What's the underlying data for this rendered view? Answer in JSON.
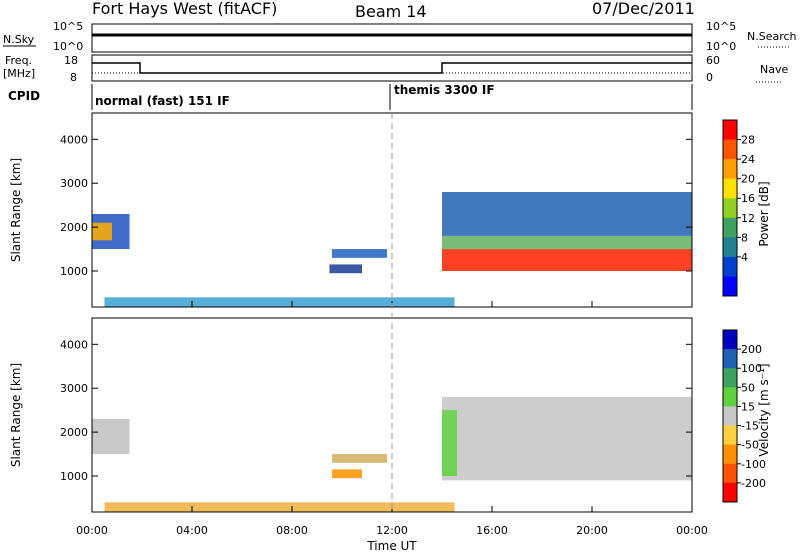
{
  "header": {
    "station": "Fort Hays West (fitACF)",
    "beam": "Beam 14",
    "date": "07/Dec/2011"
  },
  "panels": {
    "nsky": {
      "label": "N.Sky",
      "left_ticks": [
        "10^5",
        "10^0"
      ],
      "right_ticks": [
        "10^5",
        "10^0"
      ],
      "right_label": "N.Search"
    },
    "freq": {
      "label_top": "Freq.",
      "label_bottom": "[MHz]",
      "left_ticks": [
        "18",
        "8"
      ],
      "right_ticks": [
        "60",
        "0"
      ],
      "right_label": "Nave"
    },
    "cpid": {
      "label": "CPID",
      "modes": [
        {
          "text": "normal (fast) 151 IF",
          "start_hour": 0
        },
        {
          "text": "themis 3300 IF",
          "start_hour": 12
        }
      ]
    }
  },
  "chart_data": [
    {
      "type": "heatmap",
      "name": "power-panel",
      "ylabel": "Slant Range [km]",
      "y_ticks": [
        1000,
        2000,
        3000,
        4000
      ],
      "ylim": [
        180,
        4600
      ],
      "xlim_hours": [
        0,
        24
      ],
      "colorbar": {
        "label": "Power [dB]",
        "ticks": [
          "28",
          "24",
          "20",
          "16",
          "12",
          "8",
          "4"
        ],
        "colors": [
          "#ff0000",
          "#ff5500",
          "#ffa000",
          "#ffe000",
          "#90d020",
          "#40a060",
          "#208090",
          "#0040d0",
          "#0000ff"
        ]
      },
      "regions": [
        {
          "h0": 0.0,
          "h1": 1.5,
          "r0": 1500,
          "r1": 2300,
          "color": "#2050c0"
        },
        {
          "h0": 0.0,
          "h1": 0.8,
          "r0": 1700,
          "r1": 2100,
          "color": "#ffb000"
        },
        {
          "h0": 9.5,
          "h1": 10.8,
          "r0": 950,
          "r1": 1150,
          "color": "#1a3a90"
        },
        {
          "h0": 9.6,
          "h1": 11.8,
          "r0": 1300,
          "r1": 1500,
          "color": "#2060c0"
        },
        {
          "h0": 0.5,
          "h1": 14.5,
          "r0": 180,
          "r1": 400,
          "color": "#3aa0d0"
        },
        {
          "h0": 14.0,
          "h1": 24.0,
          "r0": 1000,
          "r1": 1500,
          "color": "#ff2000"
        },
        {
          "h0": 14.0,
          "h1": 24.0,
          "r0": 1500,
          "r1": 1800,
          "color": "#60b060"
        },
        {
          "h0": 14.0,
          "h1": 24.0,
          "r0": 1800,
          "r1": 2800,
          "color": "#2060b0"
        }
      ]
    },
    {
      "type": "heatmap",
      "name": "velocity-panel",
      "ylabel": "Slant Range [km]",
      "y_ticks": [
        1000,
        2000,
        3000,
        4000
      ],
      "ylim": [
        180,
        4600
      ],
      "xlim_hours": [
        0,
        24
      ],
      "x_ticks": [
        "00:00",
        "04:00",
        "08:00",
        "12:00",
        "16:00",
        "20:00",
        "00:00"
      ],
      "xlabel": "Time UT",
      "colorbar": {
        "label": "Velocity [m s⁻¹]",
        "ticks": [
          "200",
          "100",
          "50",
          "15",
          "-15",
          "-50",
          "-100",
          "-200"
        ],
        "colors": [
          "#0000c0",
          "#2060b0",
          "#40a060",
          "#60d040",
          "#c8c8c8",
          "#ffd040",
          "#ff9000",
          "#ff5000",
          "#ff0000"
        ]
      },
      "regions": [
        {
          "h0": 0.0,
          "h1": 1.5,
          "r0": 1500,
          "r1": 2300,
          "color": "#c0c0c0"
        },
        {
          "h0": 9.6,
          "h1": 11.8,
          "r0": 1300,
          "r1": 1500,
          "color": "#d0b060"
        },
        {
          "h0": 9.6,
          "h1": 10.8,
          "r0": 950,
          "r1": 1150,
          "color": "#ff9000"
        },
        {
          "h0": 0.5,
          "h1": 14.5,
          "r0": 180,
          "r1": 400,
          "color": "#f0b040"
        },
        {
          "h0": 14.0,
          "h1": 24.0,
          "r0": 900,
          "r1": 2800,
          "color": "#c4c4c4"
        },
        {
          "h0": 14.0,
          "h1": 14.6,
          "r0": 1000,
          "r1": 2500,
          "color": "#60d040"
        }
      ]
    }
  ]
}
